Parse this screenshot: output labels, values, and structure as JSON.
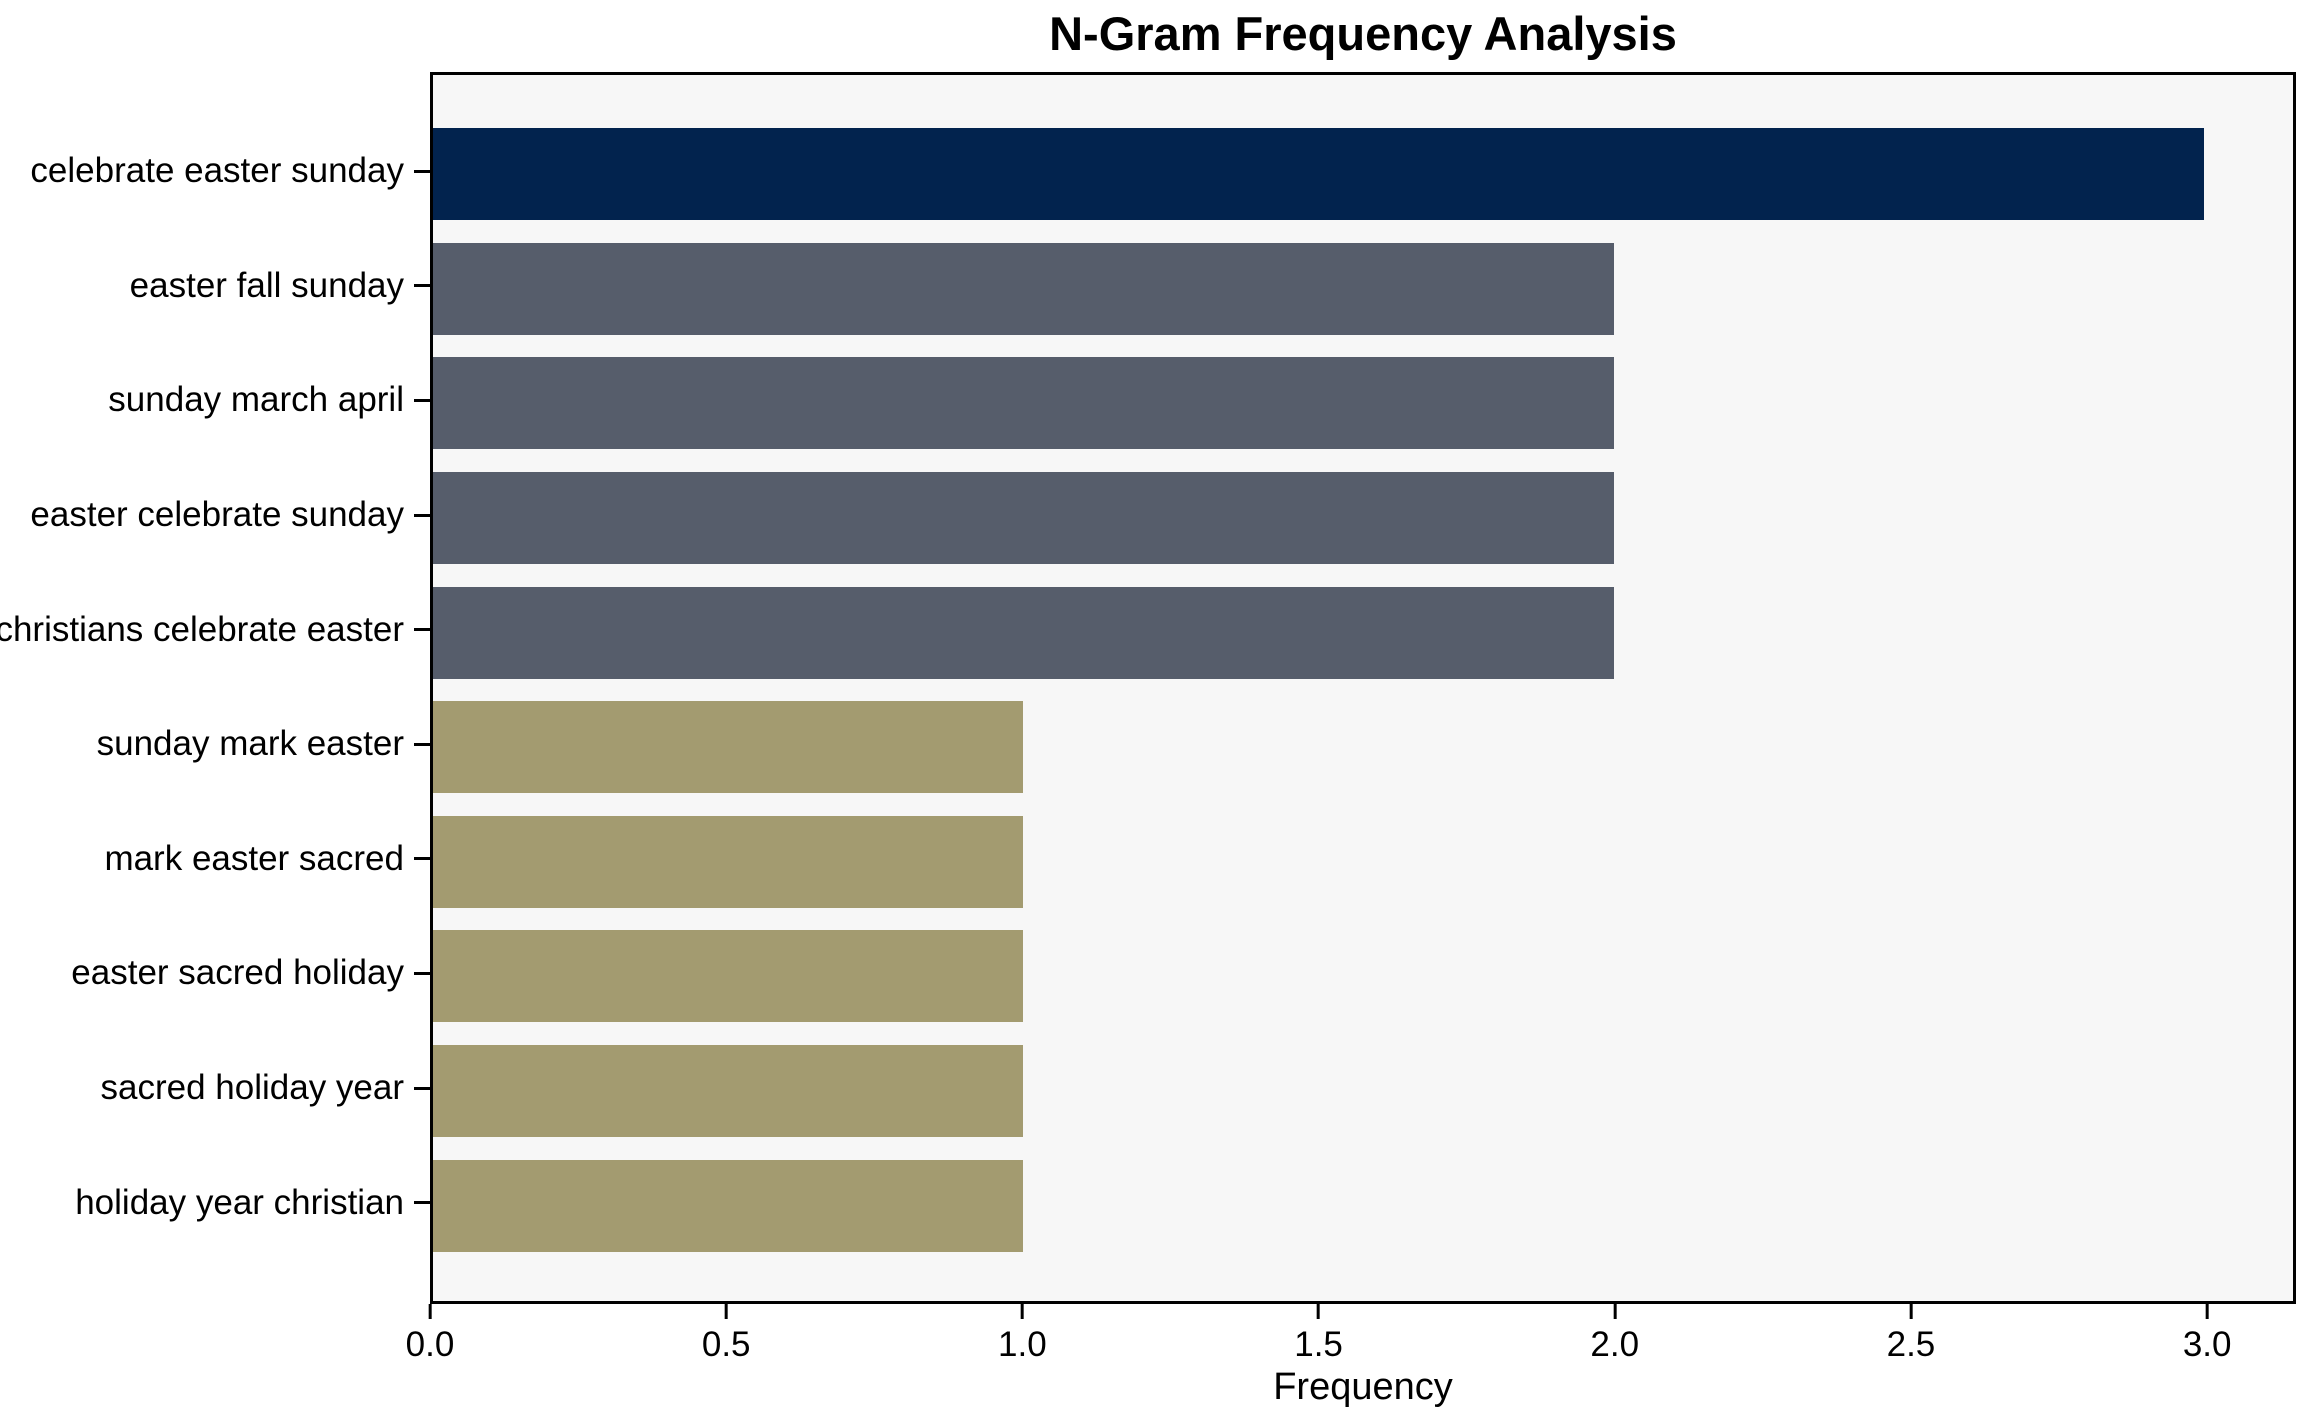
{
  "chart_data": {
    "type": "bar",
    "orientation": "horizontal",
    "title": "N-Gram Frequency Analysis",
    "xlabel": "Frequency",
    "ylabel": "",
    "categories": [
      "celebrate easter sunday",
      "easter fall sunday",
      "sunday march april",
      "easter celebrate sunday",
      "christians celebrate easter",
      "sunday mark easter",
      "mark easter sacred",
      "easter sacred holiday",
      "sacred holiday year",
      "holiday year christian"
    ],
    "values": [
      3,
      2,
      2,
      2,
      2,
      1,
      1,
      1,
      1,
      1
    ],
    "bar_colors": [
      "#02234e",
      "#565d6b",
      "#565d6b",
      "#565d6b",
      "#565d6b",
      "#a39b70",
      "#a39b70",
      "#a39b70",
      "#a39b70",
      "#a39b70"
    ],
    "x_ticks": [
      {
        "value": 0.0,
        "label": "0.0"
      },
      {
        "value": 0.5,
        "label": "0.5"
      },
      {
        "value": 1.0,
        "label": "1.0"
      },
      {
        "value": 1.5,
        "label": "1.5"
      },
      {
        "value": 2.0,
        "label": "2.0"
      },
      {
        "value": 2.5,
        "label": "2.5"
      },
      {
        "value": 3.0,
        "label": "3.0"
      }
    ],
    "xlim": [
      0,
      3.15
    ],
    "grid": false,
    "legend": null,
    "colors": {
      "highlight_navy": "#02234e",
      "mid_slate": "#565d6b",
      "low_khaki": "#a39b70",
      "plot_background": "#f7f7f7",
      "figure_background": "#ffffff",
      "axis": "#000000"
    }
  }
}
